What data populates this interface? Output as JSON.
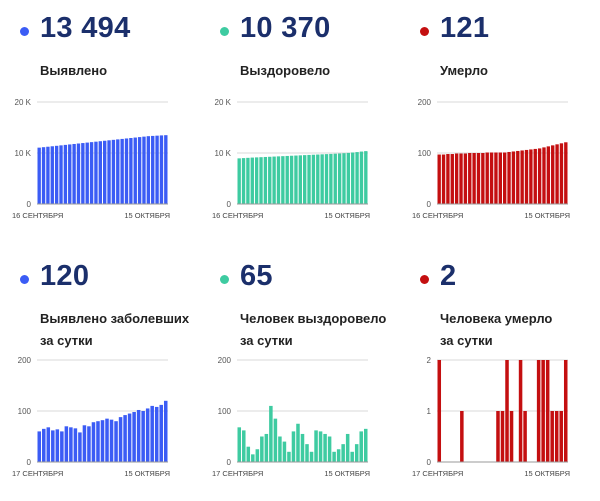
{
  "colors": {
    "blue": "#3b5cf5",
    "green": "#3ecba1",
    "red": "#c40f10"
  },
  "panels": [
    {
      "value": "13 494",
      "label_lines": [
        "Выявлено"
      ],
      "color": "#3b5cf5",
      "dot_icon": "blue-dot-icon"
    },
    {
      "value": "10 370",
      "label_lines": [
        "Выздоровело"
      ],
      "color": "#3ecba1",
      "dot_icon": "green-dot-icon"
    },
    {
      "value": "121",
      "label_lines": [
        "Умерло"
      ],
      "color": "#c40f10",
      "dot_icon": "red-dot-icon"
    },
    {
      "value": "120",
      "label_lines": [
        "Выявлено заболевших",
        "за сутки"
      ],
      "color": "#3b5cf5",
      "dot_icon": "blue-dot-icon"
    },
    {
      "value": "65",
      "label_lines": [
        "Человек выздоровело",
        "за сутки"
      ],
      "color": "#3ecba1",
      "dot_icon": "green-dot-icon"
    },
    {
      "value": "2",
      "label_lines": [
        "Человека умерло",
        "за сутки"
      ],
      "color": "#c40f10",
      "dot_icon": "red-dot-icon"
    }
  ],
  "chart_data": [
    {
      "type": "bar",
      "title": "",
      "x_start_label": "16 СЕНТЯБРЯ",
      "x_end_label": "15 ОКТЯБРЯ",
      "ylim": [
        0,
        20000
      ],
      "yticks": [
        0,
        10000,
        20000
      ],
      "ytick_labels": [
        "0",
        "10 K",
        "20 K"
      ],
      "values": [
        11050,
        11140,
        11230,
        11320,
        11410,
        11500,
        11590,
        11680,
        11770,
        11860,
        11950,
        12040,
        12130,
        12220,
        12310,
        12400,
        12490,
        12580,
        12670,
        12760,
        12850,
        12940,
        13030,
        13120,
        13210,
        13300,
        13350,
        13400,
        13450,
        13494
      ]
    },
    {
      "type": "bar",
      "title": "",
      "x_start_label": "16 СЕНТЯБРЯ",
      "x_end_label": "15 ОКТЯБРЯ",
      "ylim": [
        0,
        20000
      ],
      "yticks": [
        0,
        10000,
        20000
      ],
      "ytick_labels": [
        "0",
        "10 K",
        "20 K"
      ],
      "values": [
        8950,
        9000,
        9050,
        9100,
        9140,
        9180,
        9220,
        9260,
        9300,
        9340,
        9380,
        9420,
        9460,
        9500,
        9540,
        9580,
        9620,
        9660,
        9700,
        9740,
        9780,
        9820,
        9860,
        9900,
        9960,
        10020,
        10100,
        10180,
        10280,
        10370
      ]
    },
    {
      "type": "bar",
      "title": "",
      "x_start_label": "16 СЕНТЯБРЯ",
      "x_end_label": "15 ОКТЯБРЯ",
      "ylim": [
        0,
        200
      ],
      "yticks": [
        0,
        100,
        200
      ],
      "ytick_labels": [
        "0",
        "100",
        "200"
      ],
      "values": [
        97,
        97,
        98,
        98,
        99,
        99,
        99,
        100,
        100,
        100,
        100,
        101,
        101,
        101,
        101,
        101,
        102,
        103,
        104,
        105,
        106,
        107,
        108,
        109,
        111,
        113,
        115,
        117,
        119,
        121
      ]
    },
    {
      "type": "bar",
      "title": "",
      "x_start_label": "17 СЕНТЯБРЯ",
      "x_end_label": "15 ОКТЯБРЯ",
      "ylim": [
        0,
        200
      ],
      "yticks": [
        0,
        100,
        200
      ],
      "ytick_labels": [
        "0",
        "100",
        "200"
      ],
      "values": [
        60,
        65,
        68,
        62,
        64,
        60,
        70,
        68,
        66,
        58,
        72,
        70,
        78,
        80,
        82,
        85,
        83,
        80,
        88,
        92,
        95,
        98,
        102,
        100,
        105,
        110,
        108,
        112,
        120
      ]
    },
    {
      "type": "bar",
      "title": "",
      "x_start_label": "17 СЕНТЯБРЯ",
      "x_end_label": "15 ОКТЯБРЯ",
      "ylim": [
        0,
        200
      ],
      "yticks": [
        0,
        100,
        200
      ],
      "ytick_labels": [
        "0",
        "100",
        "200"
      ],
      "values": [
        68,
        62,
        30,
        15,
        25,
        50,
        55,
        110,
        85,
        50,
        40,
        20,
        60,
        75,
        55,
        35,
        20,
        62,
        60,
        55,
        50,
        20,
        25,
        35,
        55,
        20,
        35,
        60,
        65
      ]
    },
    {
      "type": "bar",
      "title": "",
      "x_start_label": "17 СЕНТЯБРЯ",
      "x_end_label": "15 ОКТЯБРЯ",
      "ylim": [
        0,
        2
      ],
      "yticks": [
        0,
        1,
        2
      ],
      "ytick_labels": [
        "0",
        "1",
        "2"
      ],
      "values": [
        2,
        0,
        0,
        0,
        0,
        1,
        0,
        0,
        0,
        0,
        0,
        0,
        0,
        1,
        1,
        2,
        1,
        0,
        2,
        1,
        0,
        0,
        2,
        2,
        2,
        1,
        1,
        1,
        2
      ]
    }
  ]
}
